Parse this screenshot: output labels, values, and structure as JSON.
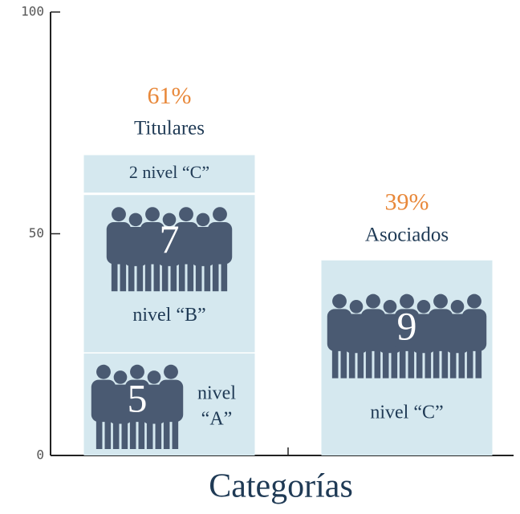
{
  "chart_data": {
    "type": "stacked_bar",
    "xlabel": "Categorías",
    "categories": [
      null,
      null
    ],
    "group_labels": [
      "Titulares",
      "Asociados"
    ],
    "shares": [
      61,
      39
    ],
    "share_labels": [
      "61%",
      "39%"
    ],
    "series": [
      {
        "color": "#d5e8ef",
        "values": [
          23,
          44
        ],
        "counts": [
          5,
          9
        ],
        "labels": [
          "nivel “A”",
          "nivel “C”"
        ]
      },
      {
        "color": "#d5e8ef",
        "values": [
          36,
          null
        ],
        "counts": [
          7,
          null
        ],
        "labels": [
          "nivel “B”",
          null
        ]
      },
      {
        "color": "#d5e8ef",
        "values": [
          9,
          null
        ],
        "counts": [
          null,
          null
        ],
        "labels": [
          "2 nivel “C”",
          null
        ]
      }
    ],
    "ylim": [
      0,
      100
    ],
    "yticks": [
      0,
      50,
      100
    ]
  }
}
